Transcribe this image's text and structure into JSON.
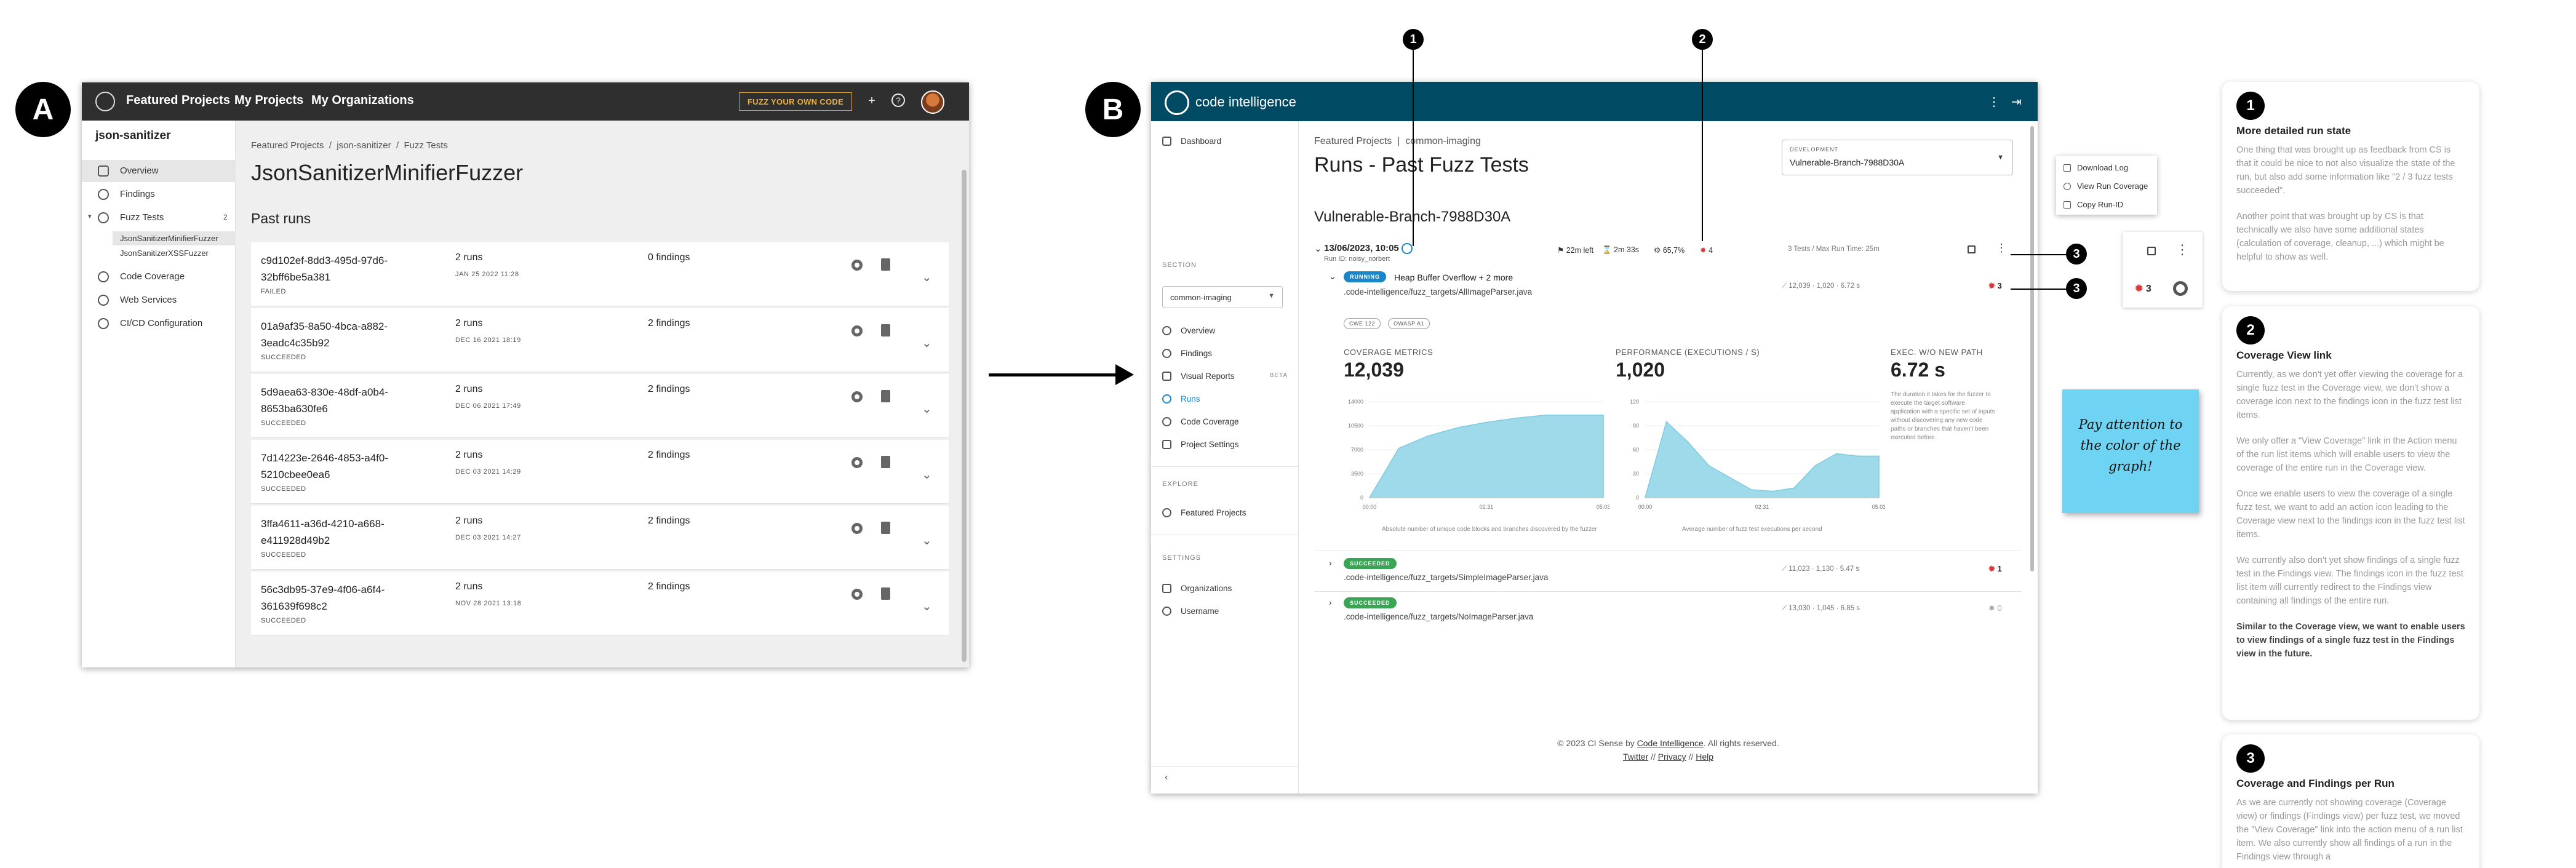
{
  "labels": {
    "a": "A",
    "b": "B"
  },
  "panelA": {
    "nav": [
      "Featured Projects",
      "My Projects",
      "My Organizations"
    ],
    "fuzz_button": "FUZZ YOUR OWN CODE",
    "project": "json-sanitizer",
    "sidebar": [
      "Overview",
      "Findings",
      "Fuzz Tests",
      "Code Coverage",
      "Web Services",
      "CI/CD Configuration"
    ],
    "fuzz_tests_count": "2",
    "sub_items": [
      "JsonSanitizerMinifierFuzzer",
      "JsonSanitizerXSSFuzzer"
    ],
    "breadcrumb": [
      "Featured Projects",
      "/",
      "json-sanitizer",
      "/",
      "Fuzz Tests"
    ],
    "title": "JsonSanitizerMinifierFuzzer",
    "subtitle": "Past runs",
    "runs": [
      {
        "id1": "c9d102ef-8dd3-495d-97d6-",
        "id2": "32bff6be5a381",
        "status": "FAILED",
        "runs": "2 runs",
        "date": "JAN 25 2022 11:28",
        "findings": "0 findings"
      },
      {
        "id1": "01a9af35-8a50-4bca-a882-",
        "id2": "3eadc4c35b92",
        "status": "SUCCEEDED",
        "runs": "2 runs",
        "date": "DEC 16 2021 18:19",
        "findings": "2 findings"
      },
      {
        "id1": "5d9aea63-830e-48df-a0b4-",
        "id2": "8653ba630fe6",
        "status": "SUCCEEDED",
        "runs": "2 runs",
        "date": "DEC 06 2021 17:49",
        "findings": "2 findings"
      },
      {
        "id1": "7d14223e-2646-4853-a4f0-",
        "id2": "5210cbee0ea6",
        "status": "SUCCEEDED",
        "runs": "2 runs",
        "date": "DEC 03 2021 14:29",
        "findings": "2 findings"
      },
      {
        "id1": "3ffa4611-a36d-4210-a668-",
        "id2": "e411928d49b2",
        "status": "SUCCEEDED",
        "runs": "2 runs",
        "date": "DEC 03 2021 14:27",
        "findings": "2 findings"
      },
      {
        "id1": "56c3db95-37e9-4f06-a6f4-",
        "id2": "361639f698c2",
        "status": "SUCCEEDED",
        "runs": "2 runs",
        "date": "NOV 28 2021 13:18",
        "findings": "2 findings"
      }
    ]
  },
  "panelB": {
    "logo": "code intelligence",
    "sidebar": {
      "dashboard": "Dashboard",
      "section_label": "SECTION",
      "project_select": "common-imaging",
      "items": [
        "Overview",
        "Findings",
        "Visual Reports",
        "Runs",
        "Code Coverage",
        "Project Settings"
      ],
      "beta": "BETA",
      "explore_label": "EXPLORE",
      "featured": "Featured Projects",
      "settings_label": "SETTINGS",
      "organizations": "Organizations",
      "username": "Username",
      "collapse": "‹"
    },
    "breadcrumb": [
      "Featured Projects",
      "|",
      "common-imaging"
    ],
    "title": "Runs - Past Fuzz Tests",
    "dev_label": "DEVELOPMENT",
    "dev_value": "Vulnerable-Branch-7988D30A",
    "branch": "Vulnerable-Branch-7988D30A",
    "run": {
      "datetime": "13/06/2023, 10:05",
      "by": "Run ID: noisy_norbert",
      "time_left": "22m left",
      "duration": "2m 33s",
      "coverage": "65,7%",
      "bugs": "4",
      "meta": "3 Tests  /  Max Run Time: 25m"
    },
    "tests": [
      {
        "status": "RUNNING",
        "title": "Heap Buffer Overflow + 2 more",
        "path": ".code-intelligence/fuzz_targets/AllImageParser.java",
        "stats": "12,039  ·  1,020  ·  6.72 s",
        "bugs": "3"
      },
      {
        "status": "SUCCEEDED",
        "title": "",
        "path": ".code-intelligence/fuzz_targets/SimpleImageParser.java",
        "stats": "11,023  ·  1,130  ·  5.47 s",
        "bugs": "1"
      },
      {
        "status": "SUCCEEDED",
        "title": "",
        "path": ".code-intelligence/fuzz_targets/NoImageParser.java",
        "stats": "13,030  ·  1,045  ·  6.85 s",
        "bugs": "0"
      }
    ],
    "tags": [
      "CWE 122",
      "OWASP A1"
    ],
    "metrics": {
      "coverage_label": "COVERAGE METRICS",
      "coverage_value": "12,039",
      "perf_label": "PERFORMANCE (EXECUTIONS / S)",
      "perf_value": "1,020",
      "exec_label": "EXEC. W/O NEW PATH",
      "exec_value": "6.72 s",
      "exec_note": "The duration it takes for the fuzzer to execute the target software application with a specific set of inputs without discovering any new code paths or branches that haven't been executed before."
    },
    "footer": {
      "copyright": "© 2023 CI Sense by",
      "company": "Code Intelligence",
      "rights": ". All rights reserved.",
      "links": [
        "Twitter",
        "//",
        "Privacy",
        "//",
        "Help"
      ]
    }
  },
  "chart_data": [
    {
      "type": "area",
      "title": "",
      "xlabel": "Absolute number of unique code blocks and branches discovered by the fuzzer",
      "ylabel": "",
      "x": [
        "00:00",
        "",
        "",
        "",
        "02:31",
        "",
        "",
        "",
        "05:03"
      ],
      "x_ticks": [
        "00:00",
        "02:31",
        "05:03"
      ],
      "y_ticks": [
        "0",
        "3500",
        "7000",
        "10500",
        "14000"
      ],
      "ylim": [
        0,
        14000
      ],
      "values": [
        0,
        7200,
        9000,
        10200,
        11000,
        11600,
        12039,
        12039,
        12039
      ]
    },
    {
      "type": "area",
      "title": "",
      "xlabel": "Average number of fuzz test executions per second",
      "ylabel": "",
      "x": [
        "00:00",
        "",
        "",
        "",
        "",
        "",
        "02:31",
        "",
        "",
        "",
        "",
        "05:03"
      ],
      "x_ticks": [
        "00:00",
        "02:31",
        "05:03"
      ],
      "y_ticks": [
        "0",
        "30",
        "60",
        "90",
        "120"
      ],
      "ylim": [
        0,
        120
      ],
      "values": [
        0,
        95,
        70,
        40,
        25,
        10,
        8,
        12,
        40,
        55,
        52,
        52
      ]
    }
  ],
  "callouts": [
    "1",
    "2",
    "3",
    "3"
  ],
  "menu": [
    "Download Log",
    "View Run Coverage",
    "Copy Run-ID"
  ],
  "variant": {
    "bugs": "3"
  },
  "sticky": "Pay attention to the color of the graph!",
  "cards": [
    {
      "num": "1",
      "title": "More detailed run state",
      "body": [
        "One thing that was brought up as feedback from CS is that it could be nice to not also visualize the state of the run, but also add some information like \"2 / 3 fuzz tests succeeded\".",
        "Another point that was brought up by CS is that technically we also have some additional states (calculation of coverage, cleanup, ...) which might be helpful to show as well."
      ]
    },
    {
      "num": "2",
      "title": "Coverage View link",
      "body": [
        "Currently, as we don't yet offer viewing the coverage for a single fuzz test in the Coverage view, we don't show a coverage icon next to the findings icon in the fuzz test list items.",
        "We only offer a \"View Coverage\" link in the Action menu of the run list items which will enable users to view the coverage of the entire run in the Coverage view.",
        "Once we enable users to view the coverage of a single fuzz test, we want to add an action icon leading to the Coverage view next to the findings icon in the fuzz test list items.",
        "We currently also don't yet show findings of a single fuzz test in the Findings view. The findings icon in the fuzz test list item will currently redirect to the Findings view containing all findings of the entire run.",
        "Similar to the Coverage view, we want to enable users to view findings of a single fuzz test in the Findings view in the future."
      ]
    },
    {
      "num": "3",
      "title": "Coverage and Findings per Run",
      "body": [
        "As we are currently not showing coverage (Coverage view) or findings (Findings view) per fuzz test, we moved the \"View Coverage\" link into the action menu of a run list item. We also currently show all findings of a run in the Findings view through a"
      ]
    }
  ]
}
